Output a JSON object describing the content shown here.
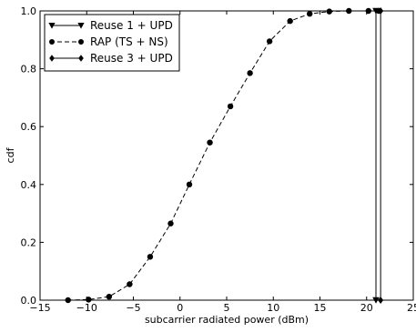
{
  "chart_data": {
    "type": "line",
    "xlabel": "subcarrier radiated power (dBm)",
    "ylabel": "cdf",
    "xlim": [
      -15,
      25
    ],
    "ylim": [
      0.0,
      1.0
    ],
    "xticks": [
      -15,
      -10,
      -5,
      0,
      5,
      10,
      15,
      20,
      25
    ],
    "xtick_labels": [
      "−15",
      "−10",
      "−5",
      "0",
      "5",
      "10",
      "15",
      "20",
      "25"
    ],
    "yticks": [
      0.0,
      0.2,
      0.4,
      0.6,
      0.8,
      1.0
    ],
    "ytick_labels": [
      "0.0",
      "0.2",
      "0.4",
      "0.6",
      "0.8",
      "1.0"
    ],
    "grid": false,
    "legend_position": "top-left",
    "series": [
      {
        "name": "Reuse 1 + UPD",
        "marker": "triangle-down",
        "linestyle": "solid",
        "color": "#000000",
        "x": [
          21.0,
          21.0,
          21.0
        ],
        "y": [
          0.0,
          0.5,
          1.0
        ]
      },
      {
        "name": "RAP (TS + NS)",
        "marker": "circle",
        "linestyle": "dashed",
        "color": "#000000",
        "x": [
          -12.0,
          -9.8,
          -7.6,
          -5.4,
          -3.2,
          -1.0,
          1.0,
          3.2,
          5.4,
          7.5,
          9.6,
          11.8,
          13.9,
          16.0,
          18.1,
          20.2,
          21.3
        ],
        "y": [
          0.0,
          0.002,
          0.012,
          0.055,
          0.15,
          0.265,
          0.4,
          0.545,
          0.67,
          0.785,
          0.895,
          0.965,
          0.99,
          0.998,
          1.0,
          1.0,
          1.0
        ]
      },
      {
        "name": "Reuse 3 + UPD",
        "marker": "diamond",
        "linestyle": "solid",
        "color": "#000000",
        "x": [
          21.5,
          21.5,
          21.5
        ],
        "y": [
          0.0,
          0.5,
          1.0
        ]
      }
    ]
  }
}
